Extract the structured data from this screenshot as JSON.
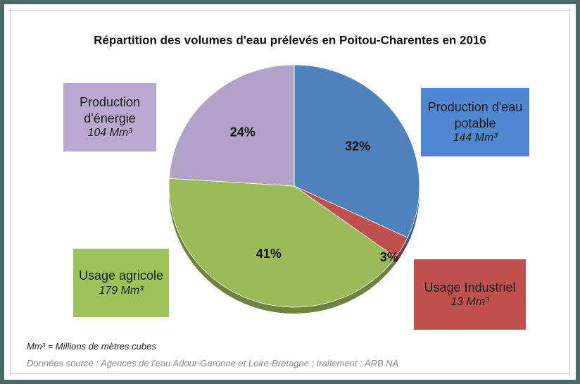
{
  "chart_data": {
    "type": "pie",
    "title": "Répartition des volumes d'eau prélevés en Poitou-Charentes en 2016",
    "categories": [
      "Production d'eau potable",
      "Usage Industriel",
      "Usage agricole",
      "Production d'énergie"
    ],
    "values": [
      32,
      3,
      41,
      24
    ],
    "value_labels": [
      "32%",
      "3%",
      "41%",
      "24%"
    ],
    "volume_labels": [
      "144 Mm³",
      "13 Mm³",
      "179 Mm³",
      "104 Mm³"
    ],
    "colors": [
      "#4f81bd",
      "#c0504d",
      "#9bbb59",
      "#b3a2c7"
    ],
    "box_colors": [
      "#4f87d0",
      "#c0504d",
      "#9bc35a",
      "#b9a9d1"
    ],
    "notes": [
      "Mm³ = Millions  de mètres cubes",
      "Données source : Agences de l'eau Adour-Garonne et Loire-Bretagne ; traitement : ARB NA"
    ]
  }
}
